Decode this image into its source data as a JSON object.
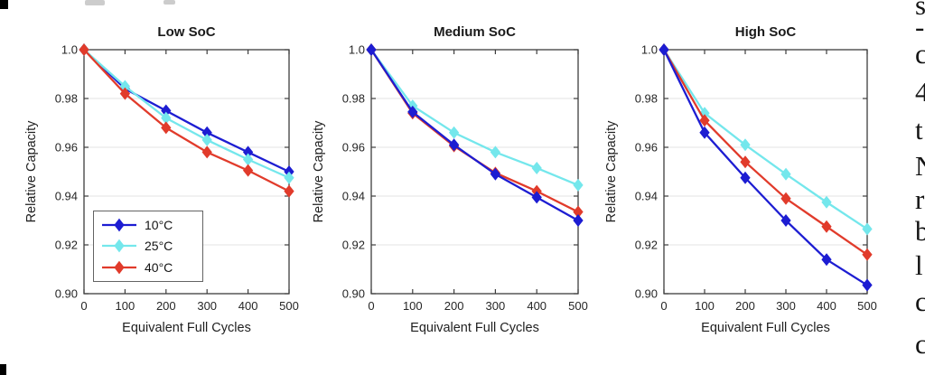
{
  "figure": {
    "kind": "three-panel line figure",
    "background": "#ffffff",
    "right_text_fragments": {
      "description": "left slivers of serif body text from adjacent page column, clipped at right edge",
      "chars": [
        "s",
        "-",
        "c",
        "4",
        "t",
        "N",
        "r",
        "b",
        "l",
        "c",
        "c"
      ]
    }
  },
  "colors": {
    "blue": "#1d1dd2",
    "cyan": "#74e7ec",
    "red": "#e13b2b",
    "grid": "#e3e3e3",
    "axis": "#3d3d3d",
    "tick_label": "#262626",
    "legend_border": "#636363"
  },
  "chart_data": [
    {
      "type": "line",
      "title": "Low SoC",
      "xlabel": "Equivalent Full Cycles",
      "ylabel": "Relative Capacity",
      "x": [
        0,
        100,
        200,
        300,
        400,
        500
      ],
      "xlim": [
        0,
        500
      ],
      "ylim": [
        0.9,
        1.0
      ],
      "xticks": [
        0,
        100,
        200,
        300,
        400,
        500
      ],
      "xtick_labels": [
        "0",
        "100",
        "200",
        "300",
        "400",
        "500"
      ],
      "yticks": [
        0.9,
        0.92,
        0.94,
        0.96,
        0.98,
        1.0
      ],
      "ytick_labels": [
        "0.90",
        "0.92",
        "0.94",
        "0.96",
        "0.98",
        "1.0"
      ],
      "grid": "horizontal",
      "marker": "diamond",
      "series": [
        {
          "name": "10°C",
          "color_key": "blue",
          "values": [
            1.0,
            0.984,
            0.975,
            0.966,
            0.958,
            0.95
          ]
        },
        {
          "name": "25°C",
          "color_key": "cyan",
          "values": [
            1.0,
            0.985,
            0.972,
            0.963,
            0.955,
            0.9475
          ]
        },
        {
          "name": "40°C",
          "color_key": "red",
          "values": [
            1.0,
            0.982,
            0.968,
            0.958,
            0.9505,
            0.942
          ]
        }
      ],
      "draw_order": [
        "10°C",
        "25°C",
        "40°C"
      ],
      "legend": {
        "visible": true,
        "position": "bottom-left",
        "labels": [
          "10°C",
          "25°C",
          "40°C"
        ]
      }
    },
    {
      "type": "line",
      "title": "Medium SoC",
      "xlabel": "Equivalent Full Cycles",
      "ylabel": "Relative Capacity",
      "x": [
        0,
        100,
        200,
        300,
        400,
        500
      ],
      "xlim": [
        0,
        500
      ],
      "ylim": [
        0.9,
        1.0
      ],
      "xticks": [
        0,
        100,
        200,
        300,
        400,
        500
      ],
      "xtick_labels": [
        "0",
        "100",
        "200",
        "300",
        "400",
        "500"
      ],
      "yticks": [
        0.9,
        0.92,
        0.94,
        0.96,
        0.98,
        1.0
      ],
      "ytick_labels": [
        "0.90",
        "0.92",
        "0.94",
        "0.96",
        "0.98",
        "1.0"
      ],
      "grid": "horizontal",
      "marker": "diamond",
      "series": [
        {
          "name": "10°C",
          "color_key": "blue",
          "values": [
            1.0,
            0.9745,
            0.961,
            0.949,
            0.9395,
            0.93
          ]
        },
        {
          "name": "25°C",
          "color_key": "cyan",
          "values": [
            1.0,
            0.977,
            0.966,
            0.958,
            0.9515,
            0.9445
          ]
        },
        {
          "name": "40°C",
          "color_key": "red",
          "values": [
            1.0,
            0.974,
            0.9605,
            0.9495,
            0.942,
            0.9335
          ]
        }
      ],
      "draw_order": [
        "25°C",
        "40°C",
        "10°C"
      ],
      "legend": {
        "visible": false
      }
    },
    {
      "type": "line",
      "title": "High SoC",
      "xlabel": "Equivalent Full Cycles",
      "ylabel": "Relative Capacity",
      "x": [
        0,
        100,
        200,
        300,
        400,
        500
      ],
      "xlim": [
        0,
        500
      ],
      "ylim": [
        0.9,
        1.0
      ],
      "xticks": [
        0,
        100,
        200,
        300,
        400,
        500
      ],
      "xtick_labels": [
        "0",
        "100",
        "200",
        "300",
        "400",
        "500"
      ],
      "yticks": [
        0.9,
        0.92,
        0.94,
        0.96,
        0.98,
        1.0
      ],
      "ytick_labels": [
        "0.90",
        "0.92",
        "0.94",
        "0.96",
        "0.98",
        "1.0"
      ],
      "grid": "horizontal",
      "marker": "diamond",
      "series": [
        {
          "name": "10°C",
          "color_key": "blue",
          "values": [
            1.0,
            0.966,
            0.9475,
            0.93,
            0.914,
            0.9035
          ]
        },
        {
          "name": "25°C",
          "color_key": "cyan",
          "values": [
            1.0,
            0.974,
            0.961,
            0.949,
            0.9375,
            0.9265
          ]
        },
        {
          "name": "40°C",
          "color_key": "red",
          "values": [
            1.0,
            0.971,
            0.954,
            0.939,
            0.9275,
            0.916
          ]
        }
      ],
      "draw_order": [
        "25°C",
        "40°C",
        "10°C"
      ],
      "legend": {
        "visible": false
      }
    }
  ]
}
